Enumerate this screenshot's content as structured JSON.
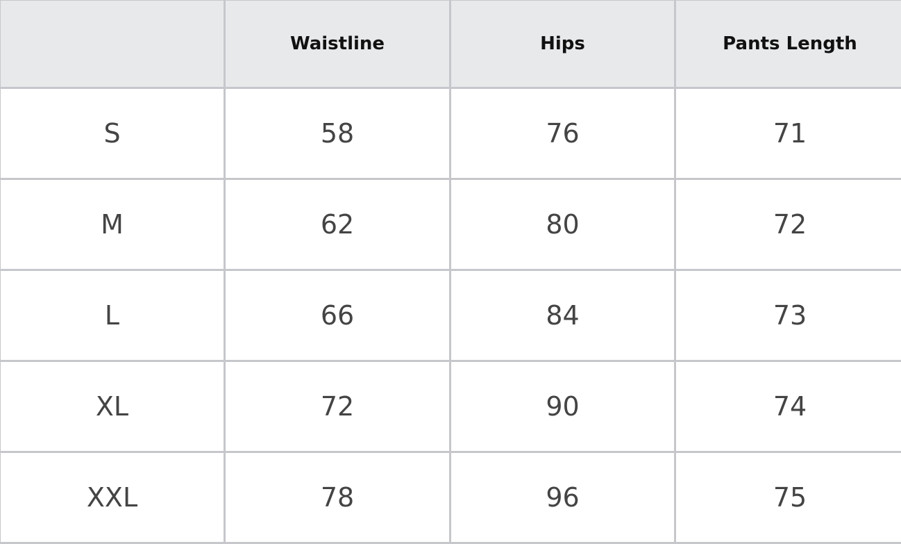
{
  "table": {
    "headers": [
      "",
      "Waistline",
      "Hips",
      "Pants Length"
    ],
    "rows": [
      [
        "S",
        "58",
        "76",
        "71"
      ],
      [
        "M",
        "62",
        "80",
        "72"
      ],
      [
        "L",
        "66",
        "84",
        "73"
      ],
      [
        "XL",
        "72",
        "90",
        "74"
      ],
      [
        "XXL",
        "78",
        "96",
        "75"
      ]
    ]
  },
  "colors": {
    "header_bg": "#e8e9eb",
    "border": "#c5c7cb",
    "text": "#444444"
  }
}
